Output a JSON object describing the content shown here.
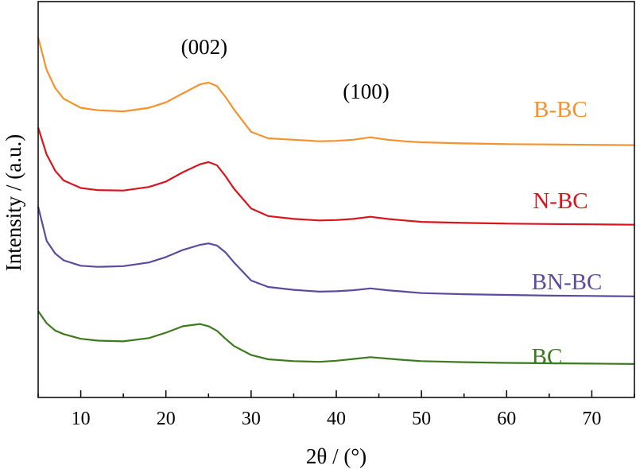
{
  "chart_data": {
    "type": "line",
    "xlabel": "2θ / (°)",
    "ylabel": "Intensity / (a.u.)",
    "xlim": [
      5,
      75
    ],
    "xticks": [
      10,
      20,
      30,
      40,
      50,
      60,
      70
    ],
    "yticks": [],
    "grid": false,
    "legend": "inline labels at right end of each curve",
    "annotations": [
      {
        "text": "(002)",
        "x": 24.5
      },
      {
        "text": "(100)",
        "x": 43.5
      }
    ],
    "x": [
      5,
      6,
      7,
      8,
      10,
      12,
      15,
      18,
      20,
      22,
      24,
      25,
      26,
      27,
      28,
      30,
      32,
      35,
      38,
      40,
      42,
      44,
      46,
      48,
      50,
      55,
      60,
      65,
      70,
      75
    ],
    "series": [
      {
        "name": "B-BC",
        "color": "#F5922F",
        "values": [
          100,
          91,
          86,
          83,
          80.5,
          79.8,
          79.5,
          80.5,
          82,
          84.5,
          87,
          87.5,
          86.5,
          83.5,
          80,
          73.8,
          72,
          71.6,
          71.2,
          71.3,
          71.6,
          72.3,
          71.6,
          71.2,
          70.9,
          70.6,
          70.4,
          70.3,
          70.2,
          70.1
        ]
      },
      {
        "name": "N-BC",
        "color": "#D9141C",
        "values": [
          75,
          67.5,
          63,
          60.3,
          58.2,
          57.6,
          57.5,
          58.5,
          60,
          62.6,
          64.8,
          65.4,
          64.5,
          61.5,
          58,
          52.5,
          50.4,
          49.6,
          49.2,
          49.3,
          49.6,
          50.2,
          49.6,
          49.2,
          48.8,
          48.5,
          48.3,
          48.2,
          48.1,
          48.0
        ]
      },
      {
        "name": "BN-BC",
        "color": "#5B4A9E",
        "values": [
          53,
          43.5,
          40,
          38.1,
          36.6,
          36.3,
          36.5,
          37.5,
          39,
          41,
          42.4,
          42.8,
          42.2,
          40.3,
          37.5,
          32.5,
          30.7,
          29.9,
          29.4,
          29.5,
          29.8,
          30.3,
          29.8,
          29.4,
          29.0,
          28.7,
          28.5,
          28.3,
          28.2,
          28.1
        ]
      },
      {
        "name": "BC",
        "color": "#3D7A1E",
        "values": [
          24,
          20.6,
          18.6,
          17.6,
          16.3,
          15.8,
          15.6,
          16.5,
          18,
          19.8,
          20.4,
          19.8,
          18.5,
          16.3,
          14.3,
          11.8,
          10.6,
          10.1,
          9.9,
          10.2,
          10.7,
          11.2,
          10.8,
          10.4,
          10.1,
          9.8,
          9.6,
          9.5,
          9.4,
          9.3
        ]
      }
    ]
  }
}
